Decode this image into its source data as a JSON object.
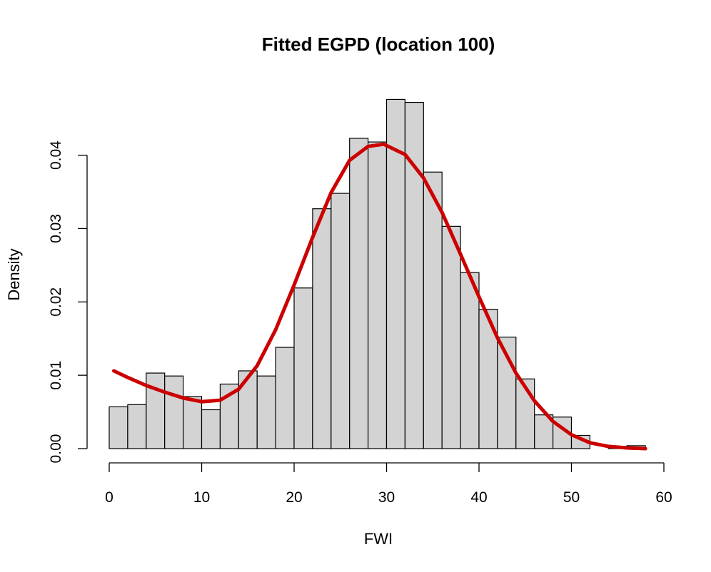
{
  "chart_data": {
    "type": "bar",
    "title": "Fitted EGPD (location 100)",
    "xlabel": "FWI",
    "ylabel": "Density",
    "xlim": [
      0,
      60
    ],
    "ylim": [
      0,
      0.045
    ],
    "x_ticks": [
      "0",
      "10",
      "20",
      "30",
      "40",
      "50",
      "60"
    ],
    "y_ticks": [
      "0.00",
      "0.01",
      "0.02",
      "0.03",
      "0.04"
    ],
    "grid": false,
    "legend": "none",
    "histogram": {
      "bin_width": 2,
      "bin_edges": [
        0,
        2,
        4,
        6,
        8,
        10,
        12,
        14,
        16,
        18,
        20,
        22,
        24,
        26,
        28,
        30,
        32,
        34,
        36,
        38,
        40,
        42,
        44,
        46,
        48,
        50,
        52,
        54,
        56,
        58
      ],
      "density": [
        0.0057,
        0.006,
        0.0103,
        0.0099,
        0.0071,
        0.0053,
        0.0088,
        0.0106,
        0.0099,
        0.0138,
        0.0219,
        0.0327,
        0.0348,
        0.0423,
        0.0418,
        0.0476,
        0.0472,
        0.0377,
        0.0303,
        0.024,
        0.019,
        0.0152,
        0.0095,
        0.0046,
        0.0043,
        0.0018,
        0.0,
        0.0003,
        0.0004
      ],
      "fill": "#d3d3d3",
      "stroke": "#000000"
    },
    "fitted_curve": {
      "x": [
        0.5,
        2,
        4,
        6,
        8,
        10,
        12,
        14,
        16,
        18,
        20,
        22,
        24,
        26,
        28,
        29.7,
        32,
        34,
        36,
        38,
        40,
        42,
        44,
        46,
        48,
        50,
        52,
        54,
        56,
        58
      ],
      "y": [
        0.0106,
        0.0097,
        0.0086,
        0.0077,
        0.0069,
        0.0064,
        0.0066,
        0.0081,
        0.0113,
        0.0162,
        0.0223,
        0.0288,
        0.0349,
        0.0393,
        0.0412,
        0.0415,
        0.0401,
        0.0369,
        0.0322,
        0.0265,
        0.0207,
        0.0151,
        0.0103,
        0.0065,
        0.0037,
        0.0019,
        0.0008,
        0.0003,
        0.0001,
        0.0
      ],
      "color": "#cc0000"
    }
  }
}
